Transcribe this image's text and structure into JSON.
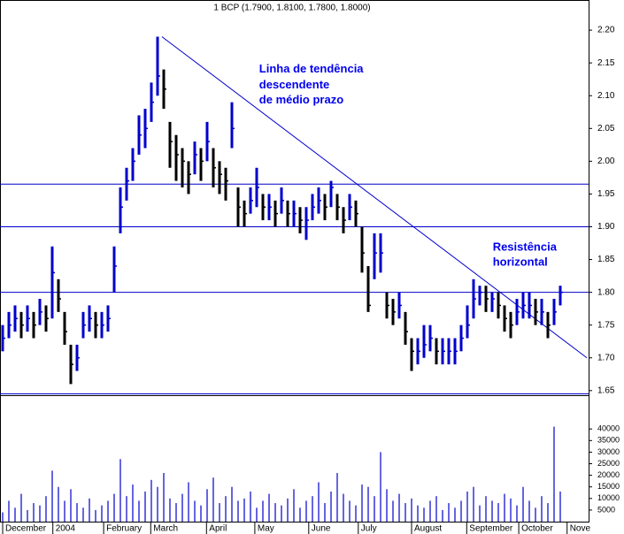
{
  "chart_data": {
    "type": "ohlc",
    "title": "1 BCP (1.7900, 1.8100, 1.7800, 1.8000)",
    "annotations": [
      {
        "text": "Linha de tendência",
        "x": 41.4,
        "y": 2.14
      },
      {
        "text": "descendente",
        "x": 41.4,
        "y": 2.116
      },
      {
        "text": "de médio prazo",
        "x": 41.4,
        "y": 2.093
      },
      {
        "text": "Resistência",
        "x": 79.1,
        "y": 1.868
      },
      {
        "text": "horizontal",
        "x": 79.1,
        "y": 1.845
      }
    ],
    "categories": [
      null,
      null,
      null,
      null,
      null,
      null,
      null,
      null,
      null,
      null,
      null,
      null,
      null,
      null,
      null,
      null,
      null,
      null,
      null,
      null,
      null,
      null,
      null,
      null,
      null,
      null,
      null,
      null,
      null,
      null,
      null,
      null,
      null,
      null,
      null,
      null,
      null,
      null,
      null,
      null,
      null,
      null,
      null,
      null,
      null,
      null,
      null,
      null,
      null,
      null,
      null,
      null,
      null,
      null,
      null,
      null,
      null,
      null,
      null,
      null,
      null,
      null,
      null,
      null,
      null,
      null,
      null,
      null,
      null,
      null,
      null,
      null,
      null,
      null,
      null,
      null,
      null,
      null,
      null,
      null,
      null,
      null,
      null,
      null,
      null,
      null,
      null,
      null,
      null,
      null,
      null
    ],
    "high": [
      1.75,
      1.77,
      1.78,
      1.77,
      1.78,
      1.77,
      1.79,
      1.78,
      1.87,
      1.82,
      1.77,
      1.72,
      1.72,
      1.77,
      1.78,
      1.77,
      1.77,
      1.78,
      1.87,
      1.96,
      1.99,
      2.02,
      2.07,
      2.08,
      2.12,
      2.19,
      2.14,
      2.06,
      2.04,
      2.02,
      2.0,
      2.03,
      2.02,
      2.06,
      2.02,
      2.0,
      1.99,
      2.09,
      1.96,
      1.94,
      1.96,
      1.99,
      1.95,
      1.95,
      1.94,
      1.96,
      1.94,
      1.94,
      1.93,
      1.93,
      1.95,
      1.96,
      1.95,
      1.97,
      1.95,
      1.93,
      1.95,
      1.94,
      1.9,
      1.84,
      1.89,
      1.89,
      1.8,
      1.79,
      1.8,
      1.77,
      1.73,
      1.73,
      1.75,
      1.75,
      1.73,
      1.73,
      1.73,
      1.73,
      1.75,
      1.78,
      1.82,
      1.81,
      1.81,
      1.8,
      1.8,
      1.78,
      1.77,
      1.79,
      1.8,
      1.8,
      1.79,
      1.79,
      1.77,
      1.79,
      1.81
    ],
    "low": [
      1.71,
      1.73,
      1.74,
      1.73,
      1.74,
      1.73,
      1.75,
      1.74,
      1.76,
      1.77,
      1.72,
      1.66,
      1.68,
      1.73,
      1.74,
      1.73,
      1.73,
      1.74,
      1.8,
      1.89,
      1.94,
      1.97,
      2.01,
      2.02,
      2.06,
      2.1,
      2.08,
      1.99,
      1.97,
      1.96,
      1.95,
      1.98,
      1.97,
      2.0,
      1.96,
      1.95,
      1.94,
      2.02,
      1.9,
      1.9,
      1.92,
      1.93,
      1.91,
      1.91,
      1.9,
      1.92,
      1.9,
      1.9,
      1.89,
      1.88,
      1.91,
      1.92,
      1.91,
      1.93,
      1.91,
      1.89,
      1.91,
      1.9,
      1.83,
      1.77,
      1.82,
      1.83,
      1.76,
      1.75,
      1.76,
      1.72,
      1.68,
      1.69,
      1.7,
      1.71,
      1.69,
      1.69,
      1.69,
      1.69,
      1.71,
      1.73,
      1.76,
      1.78,
      1.77,
      1.77,
      1.76,
      1.74,
      1.73,
      1.75,
      1.76,
      1.76,
      1.75,
      1.75,
      1.73,
      1.75,
      1.78
    ],
    "close": [
      1.73,
      1.75,
      1.76,
      1.75,
      1.76,
      1.75,
      1.77,
      1.76,
      1.83,
      1.79,
      1.74,
      1.69,
      1.7,
      1.75,
      1.76,
      1.75,
      1.75,
      1.76,
      1.84,
      1.93,
      1.97,
      2.0,
      2.04,
      2.05,
      2.09,
      2.13,
      2.11,
      2.03,
      2.01,
      2.0,
      1.98,
      2.01,
      2.0,
      2.03,
      1.99,
      1.98,
      1.97,
      2.05,
      1.93,
      1.92,
      1.94,
      1.96,
      1.93,
      1.93,
      1.92,
      1.94,
      1.92,
      1.92,
      1.91,
      1.91,
      1.93,
      1.94,
      1.93,
      1.96,
      1.93,
      1.91,
      1.93,
      1.92,
      1.86,
      1.78,
      1.86,
      1.86,
      1.78,
      1.77,
      1.78,
      1.74,
      1.71,
      1.71,
      1.72,
      1.73,
      1.71,
      1.71,
      1.71,
      1.71,
      1.73,
      1.75,
      1.79,
      1.8,
      1.79,
      1.79,
      1.78,
      1.76,
      1.75,
      1.77,
      1.78,
      1.78,
      1.77,
      1.77,
      1.75,
      1.77,
      1.8
    ],
    "volume": [
      4000,
      9000,
      6000,
      12000,
      5000,
      8000,
      7000,
      11000,
      22000,
      15000,
      9000,
      14000,
      8000,
      6000,
      10000,
      5000,
      7000,
      9000,
      12000,
      27000,
      11000,
      16000,
      9000,
      13000,
      18000,
      15000,
      21000,
      10000,
      8000,
      12000,
      17000,
      9000,
      7000,
      14000,
      19000,
      8000,
      11000,
      15000,
      9000,
      10000,
      13000,
      6000,
      9000,
      12000,
      8000,
      7000,
      10000,
      14000,
      6000,
      9000,
      11000,
      17000,
      8000,
      13000,
      21000,
      12000,
      9000,
      7000,
      16000,
      15000,
      11000,
      30000,
      14000,
      9000,
      12000,
      8000,
      10000,
      7000,
      6000,
      9000,
      11000,
      5000,
      8000,
      6000,
      9000,
      13000,
      15000,
      7000,
      11000,
      9000,
      8000,
      12000,
      10000,
      7000,
      15000,
      9000,
      6000,
      11000,
      8000,
      41000,
      13000
    ],
    "hlines": [
      1.965,
      1.9,
      1.8,
      1.645
    ],
    "trend_line": {
      "x": [
        25.7,
        94.3
      ],
      "y": [
        2.19,
        1.7
      ]
    },
    "ylim": [
      1.643,
      2.246
    ],
    "yticks": [
      {
        "value": 1.65,
        "label": "1.65"
      },
      {
        "value": 1.7,
        "label": "1.70"
      },
      {
        "value": 1.75,
        "label": "1.75"
      },
      {
        "value": 1.8,
        "label": "1.80"
      },
      {
        "value": 1.85,
        "label": "1.85"
      },
      {
        "value": 1.9,
        "label": "1.90"
      },
      {
        "value": 1.95,
        "label": "1.95"
      },
      {
        "value": 2.0,
        "label": "2.00"
      },
      {
        "value": 2.05,
        "label": "2.05"
      },
      {
        "value": 2.1,
        "label": "2.10"
      },
      {
        "value": 2.15,
        "label": "2.15"
      },
      {
        "value": 2.2,
        "label": "2.20"
      }
    ],
    "y2lim": [
      0,
      54200
    ],
    "y2ticks": [
      5000,
      10000,
      15000,
      20000,
      25000,
      30000,
      35000,
      40000
    ],
    "xticks": [
      {
        "value": 0,
        "label": "December"
      },
      {
        "value": 8.1,
        "label": "2004"
      },
      {
        "value": 16.3,
        "label": "February"
      },
      {
        "value": 23.9,
        "label": "March"
      },
      {
        "value": 32.9,
        "label": "April"
      },
      {
        "value": 40.7,
        "label": "May"
      },
      {
        "value": 49.4,
        "label": "June"
      },
      {
        "value": 57.4,
        "label": "July"
      },
      {
        "value": 66,
        "label": "August"
      },
      {
        "value": 74.9,
        "label": "September"
      },
      {
        "value": 83.3,
        "label": "October"
      },
      {
        "value": 91.1,
        "label": "Nove"
      }
    ],
    "up_color": "#0000cc",
    "down_color": "#000000",
    "line_color": "#0000cc",
    "annotation_color": "#0000ee"
  }
}
